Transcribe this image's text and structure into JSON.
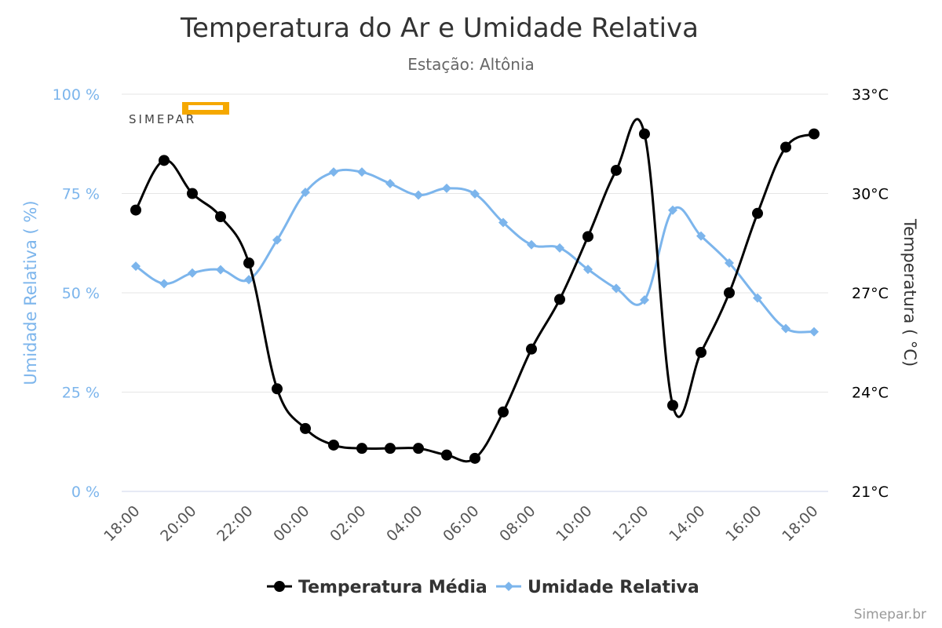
{
  "chart_data": {
    "type": "line",
    "title": "Temperatura do Ar e Umidade Relativa",
    "subtitle": "Estação: Altônia",
    "x": [
      "18:00",
      "19:00",
      "20:00",
      "21:00",
      "22:00",
      "23:00",
      "00:00",
      "01:00",
      "02:00",
      "03:00",
      "04:00",
      "05:00",
      "06:00",
      "07:00",
      "08:00",
      "09:00",
      "10:00",
      "11:00",
      "12:00",
      "13:00",
      "14:00",
      "15:00",
      "16:00",
      "17:00",
      "18:00"
    ],
    "x_tick_labels": [
      "18:00",
      "20:00",
      "22:00",
      "00:00",
      "02:00",
      "04:00",
      "06:00",
      "08:00",
      "10:00",
      "12:00",
      "14:00",
      "16:00",
      "18:00"
    ],
    "y_left": {
      "label": "Umidade Relativa ( %)",
      "ticks": [
        "0 %",
        "25 %",
        "50 %",
        "75 %",
        "100 %"
      ],
      "range": [
        0,
        100
      ]
    },
    "y_right": {
      "label": "Temperatura ( °C)",
      "ticks": [
        "21°C",
        "24°C",
        "27°C",
        "30°C",
        "33°C"
      ],
      "range": [
        21,
        33
      ]
    },
    "series": [
      {
        "name": "Temperatura Média",
        "axis": "right",
        "color": "#000000",
        "marker": "circle",
        "values": [
          29.5,
          31.0,
          30.0,
          29.3,
          27.9,
          24.1,
          22.9,
          22.4,
          22.3,
          22.3,
          22.3,
          22.1,
          22.0,
          23.4,
          25.3,
          26.8,
          28.7,
          30.7,
          31.8,
          23.6,
          25.2,
          27.0,
          29.4,
          31.4,
          31.8
        ]
      },
      {
        "name": "Umidade Relativa",
        "axis": "left",
        "color": "#7cb5ec",
        "marker": "diamond",
        "values": [
          56.7,
          52.3,
          55.0,
          55.8,
          53.3,
          63.3,
          75.3,
          80.4,
          80.4,
          77.5,
          74.6,
          76.3,
          74.9,
          67.7,
          62.1,
          61.3,
          55.9,
          51.1,
          48.2,
          70.8,
          64.3,
          57.5,
          48.7,
          41.0,
          40.2
        ]
      }
    ],
    "grid": true,
    "legend_position": "bottom-center"
  },
  "credits": "Simepar.br",
  "logo": {
    "name": "simepar-logo",
    "text": "SIMEPAR",
    "accent_color": "#f5a800"
  }
}
